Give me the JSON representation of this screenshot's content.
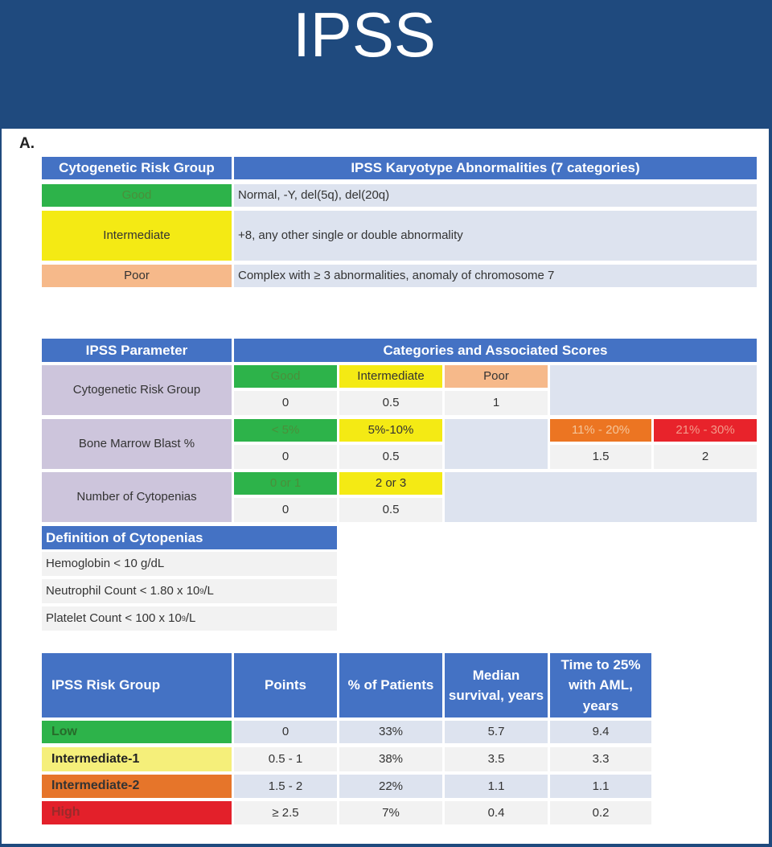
{
  "title": "IPSS",
  "section_label": "A.",
  "cyto_table": {
    "headers": [
      "Cytogenetic Risk Group",
      "IPSS Karyotype Abnormalities (7 categories)"
    ],
    "rows": [
      {
        "group": "Good",
        "desc": "Normal, -Y, del(5q), del(20q)",
        "color": "#2db34a"
      },
      {
        "group": "Intermediate",
        "desc": "+8, any other single or double abnormality",
        "color": "#f4ea14"
      },
      {
        "group": "Poor",
        "desc": "Complex with ≥ 3 abnormalities, anomaly of chromosome 7",
        "color": "#f6b98a"
      }
    ]
  },
  "param_table": {
    "headers": [
      "IPSS Parameter",
      "Categories and Associated Scores"
    ],
    "cytogenetic": {
      "label": "Cytogenetic Risk Group",
      "categories": [
        "Good",
        "Intermediate",
        "Poor"
      ],
      "scores": [
        "0",
        "0.5",
        "1"
      ]
    },
    "blast": {
      "label": "Bone Marrow Blast %",
      "categories": [
        "< 5%",
        "5%-10%",
        "11% - 20%",
        "21% - 30%"
      ],
      "scores": [
        "0",
        "0.5",
        "1.5",
        "2"
      ]
    },
    "cytopenias": {
      "label": "Number of Cytopenias",
      "categories": [
        "0 or 1",
        "2 or 3"
      ],
      "scores": [
        "0",
        "0.5"
      ]
    }
  },
  "definition": {
    "header": "Definition of Cytopenias",
    "items": [
      {
        "text": "Hemoglobin  < 10 g/dL",
        "exp": "",
        "suffix": ""
      },
      {
        "text": "Neutrophil Count < 1.80 x 10",
        "exp": "9",
        "suffix": "/L"
      },
      {
        "text": "Platelet Count < 100 x 10",
        "exp": "9",
        "suffix": "/L"
      }
    ]
  },
  "risk_table": {
    "headers": [
      "IPSS Risk Group",
      "Points",
      "% of Patients",
      "Median survival, years",
      "Time to 25% with AML, years"
    ],
    "rows": [
      {
        "group": "Low",
        "points": "0",
        "pct": "33%",
        "survival": "5.7",
        "aml": "9.4"
      },
      {
        "group": "Intermediate-1",
        "points": "0.5 - 1",
        "pct": "38%",
        "survival": "3.5",
        "aml": "3.3"
      },
      {
        "group": "Intermediate-2",
        "points": "1.5 - 2",
        "pct": "22%",
        "survival": "1.1",
        "aml": "1.1"
      },
      {
        "group": "High",
        "points": "≥ 2.5",
        "pct": "7%",
        "survival": "0.4",
        "aml": "0.2"
      }
    ]
  },
  "colors": {
    "header_bg": "#1f4a7e",
    "table_header": "#4472c4",
    "good": "#2db34a",
    "intermediate": "#f4ea14",
    "poor": "#f6b98a",
    "orange": "#ec7522",
    "red": "#e8232b"
  }
}
